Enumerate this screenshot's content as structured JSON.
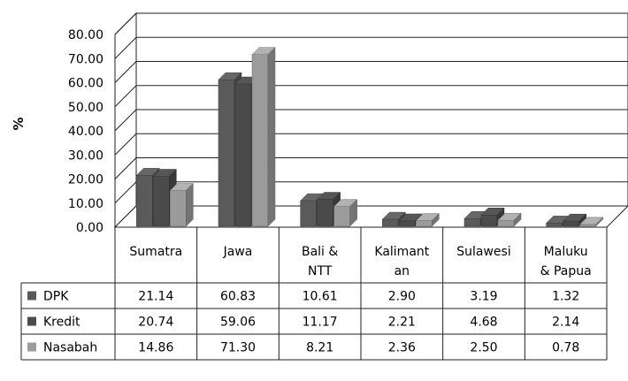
{
  "chart_data": {
    "type": "bar",
    "subtype": "3d-clustered-column-with-data-table",
    "ylabel": "%",
    "ylim": [
      0,
      80
    ],
    "ytick_step": 10,
    "yticks": [
      "0.00",
      "10.00",
      "20.00",
      "30.00",
      "40.00",
      "50.00",
      "60.00",
      "70.00",
      "80.00"
    ],
    "grid": true,
    "categories": [
      [
        "Sumatra"
      ],
      [
        "Jawa"
      ],
      [
        "Bali &",
        "NTT"
      ],
      [
        "Kalimant",
        "an"
      ],
      [
        "Sulawesi"
      ],
      [
        "Maluku",
        "& Papua"
      ]
    ],
    "series": [
      {
        "name": "DPK",
        "color": "#5a5a5a",
        "values": [
          21.14,
          60.83,
          10.61,
          2.9,
          3.19,
          1.32
        ],
        "labels": [
          "21.14",
          "60.83",
          "10.61",
          "2.90",
          "3.19",
          "1.32"
        ]
      },
      {
        "name": "Kredit",
        "color": "#4b4b4b",
        "values": [
          20.74,
          59.06,
          11.17,
          2.21,
          4.68,
          2.14
        ],
        "labels": [
          "20.74",
          "59.06",
          "11.17",
          "2.21",
          "4.68",
          "2.14"
        ]
      },
      {
        "name": "Nasabah",
        "color": "#9b9b9b",
        "values": [
          14.86,
          71.3,
          8.21,
          2.36,
          2.5,
          0.78
        ],
        "labels": [
          "14.86",
          "71.30",
          "8.21",
          "2.36",
          "2.50",
          "0.78"
        ]
      }
    ]
  }
}
